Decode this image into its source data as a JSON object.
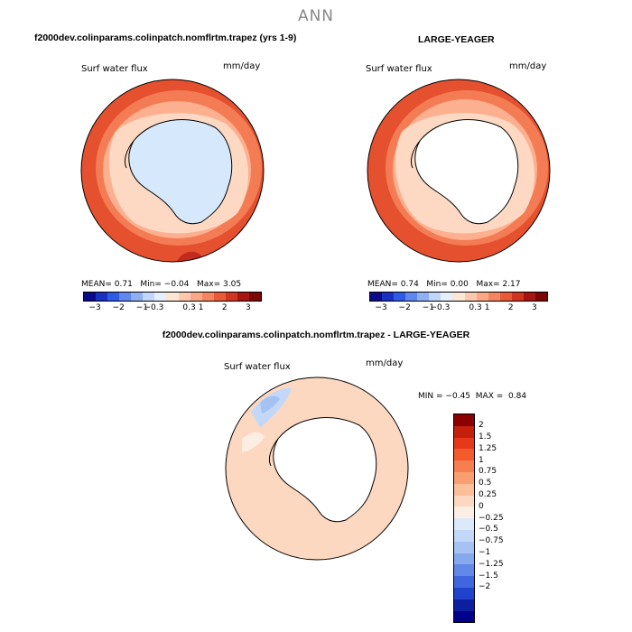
{
  "page_title": "ANN",
  "colors": {
    "ocean_base": "#fdd9c3",
    "ocean_mid": "#fcb08f",
    "ocean_strong": "#f47c55",
    "ocean_max": "#e5502f",
    "ice": "#d6e8fb",
    "land": "#ffffff",
    "coast": "#000000"
  },
  "panel1": {
    "header": "f2000dev.colinparams.colinpatch.nomflrtm.trapez (yrs 1-9)",
    "variable": "Surf water flux",
    "units": "mm/day",
    "mean_label": "MEAN=",
    "mean": "0.71",
    "min_label": "Min=",
    "min": "−0.04",
    "max_label": "Max=",
    "max": "3.05"
  },
  "panel2": {
    "header": "LARGE-YEAGER",
    "variable": "Surf water flux",
    "units": "mm/day",
    "mean_label": "MEAN=",
    "mean": "0.74",
    "min_label": "Min=",
    "min": "0.00",
    "max_label": "Max=",
    "max": "2.17"
  },
  "colorbar_top": {
    "colors": [
      "#0a0a8a",
      "#1a2fc4",
      "#2e5ae6",
      "#5f87f0",
      "#8fb0f5",
      "#c1d6fa",
      "#e6f0fc",
      "#fde6d6",
      "#fdc9ad",
      "#fca886",
      "#f6845e",
      "#ea5a38",
      "#d13520",
      "#a81510",
      "#7a0606"
    ],
    "labels": [
      "−3",
      "−2",
      "−1",
      "−0.3",
      "0.3",
      "1",
      "2",
      "3"
    ]
  },
  "panel3": {
    "header": "f2000dev.colinparams.colinpatch.nomflrtm.trapez - LARGE-YEAGER",
    "variable": "Surf water flux",
    "units": "mm/day",
    "min_label": "MIN =",
    "min": "−0.45",
    "max_label": "MAX =",
    "max": "0.84"
  },
  "colorbar_diff": {
    "colors": [
      "#8b0000",
      "#c4200c",
      "#e5391a",
      "#f35a2c",
      "#f77e4e",
      "#fa9e72",
      "#fcbf9a",
      "#fdd8c0",
      "#fdeee3",
      "#dce9fb",
      "#c3d8f8",
      "#a6c2f3",
      "#86a8ee",
      "#6389e8",
      "#3f66df",
      "#2142cc",
      "#0d1f9e",
      "#00008b"
    ],
    "labels": [
      "2",
      "1.5",
      "1.25",
      "1",
      "0.75",
      "0.5",
      "0.25",
      "0",
      "−0.25",
      "−0.5",
      "−0.75",
      "−1",
      "−1.25",
      "−1.5",
      "−2"
    ]
  }
}
